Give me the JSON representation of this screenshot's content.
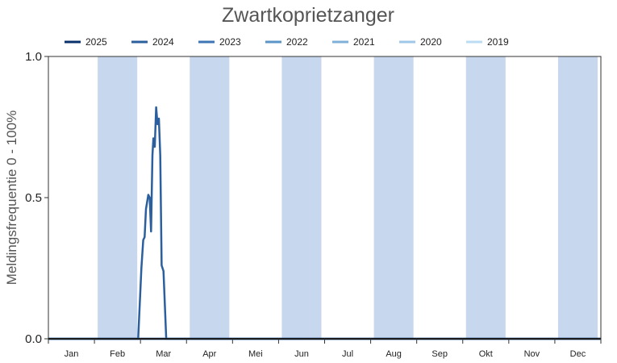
{
  "chart_data": {
    "type": "line",
    "title": "Zwartkoprietzanger",
    "ylabel": "Meldingsfrequentie 0 - 100%",
    "xlabel": "",
    "ylim": [
      0,
      1
    ],
    "yticks": [
      "0.0",
      "0.5",
      "1.0"
    ],
    "categories": [
      "Jan",
      "Feb",
      "Mar",
      "Apr",
      "Mei",
      "Jun",
      "Jul",
      "Aug",
      "Sep",
      "Okt",
      "Nov",
      "Dec"
    ],
    "legend_position": "top",
    "shaded_band_color": "#c6d7ee",
    "series": [
      {
        "name": "2025",
        "color": "#08306b",
        "points": [
          [
            0,
            0
          ],
          [
            12,
            0
          ]
        ]
      },
      {
        "name": "2024",
        "color": "#2b5f9e",
        "points": [
          [
            0,
            0
          ],
          [
            1.95,
            0
          ],
          [
            2.02,
            0.25
          ],
          [
            2.06,
            0.35
          ],
          [
            2.09,
            0.36
          ],
          [
            2.12,
            0.46
          ],
          [
            2.17,
            0.51
          ],
          [
            2.2,
            0.5
          ],
          [
            2.23,
            0.38
          ],
          [
            2.26,
            0.65
          ],
          [
            2.28,
            0.71
          ],
          [
            2.31,
            0.68
          ],
          [
            2.34,
            0.82
          ],
          [
            2.37,
            0.76
          ],
          [
            2.4,
            0.78
          ],
          [
            2.43,
            0.65
          ],
          [
            2.46,
            0.26
          ],
          [
            2.5,
            0.24
          ],
          [
            2.56,
            0
          ],
          [
            12,
            0
          ]
        ]
      },
      {
        "name": "2023",
        "color": "#3e76b5",
        "points": [
          [
            0,
            0
          ],
          [
            5.5,
            0
          ]
        ]
      },
      {
        "name": "2022",
        "color": "#5b95c8",
        "points": []
      },
      {
        "name": "2021",
        "color": "#7fb0da",
        "points": []
      },
      {
        "name": "2020",
        "color": "#9fc7e8",
        "points": []
      },
      {
        "name": "2019",
        "color": "#bcdcf3",
        "points": []
      }
    ]
  }
}
